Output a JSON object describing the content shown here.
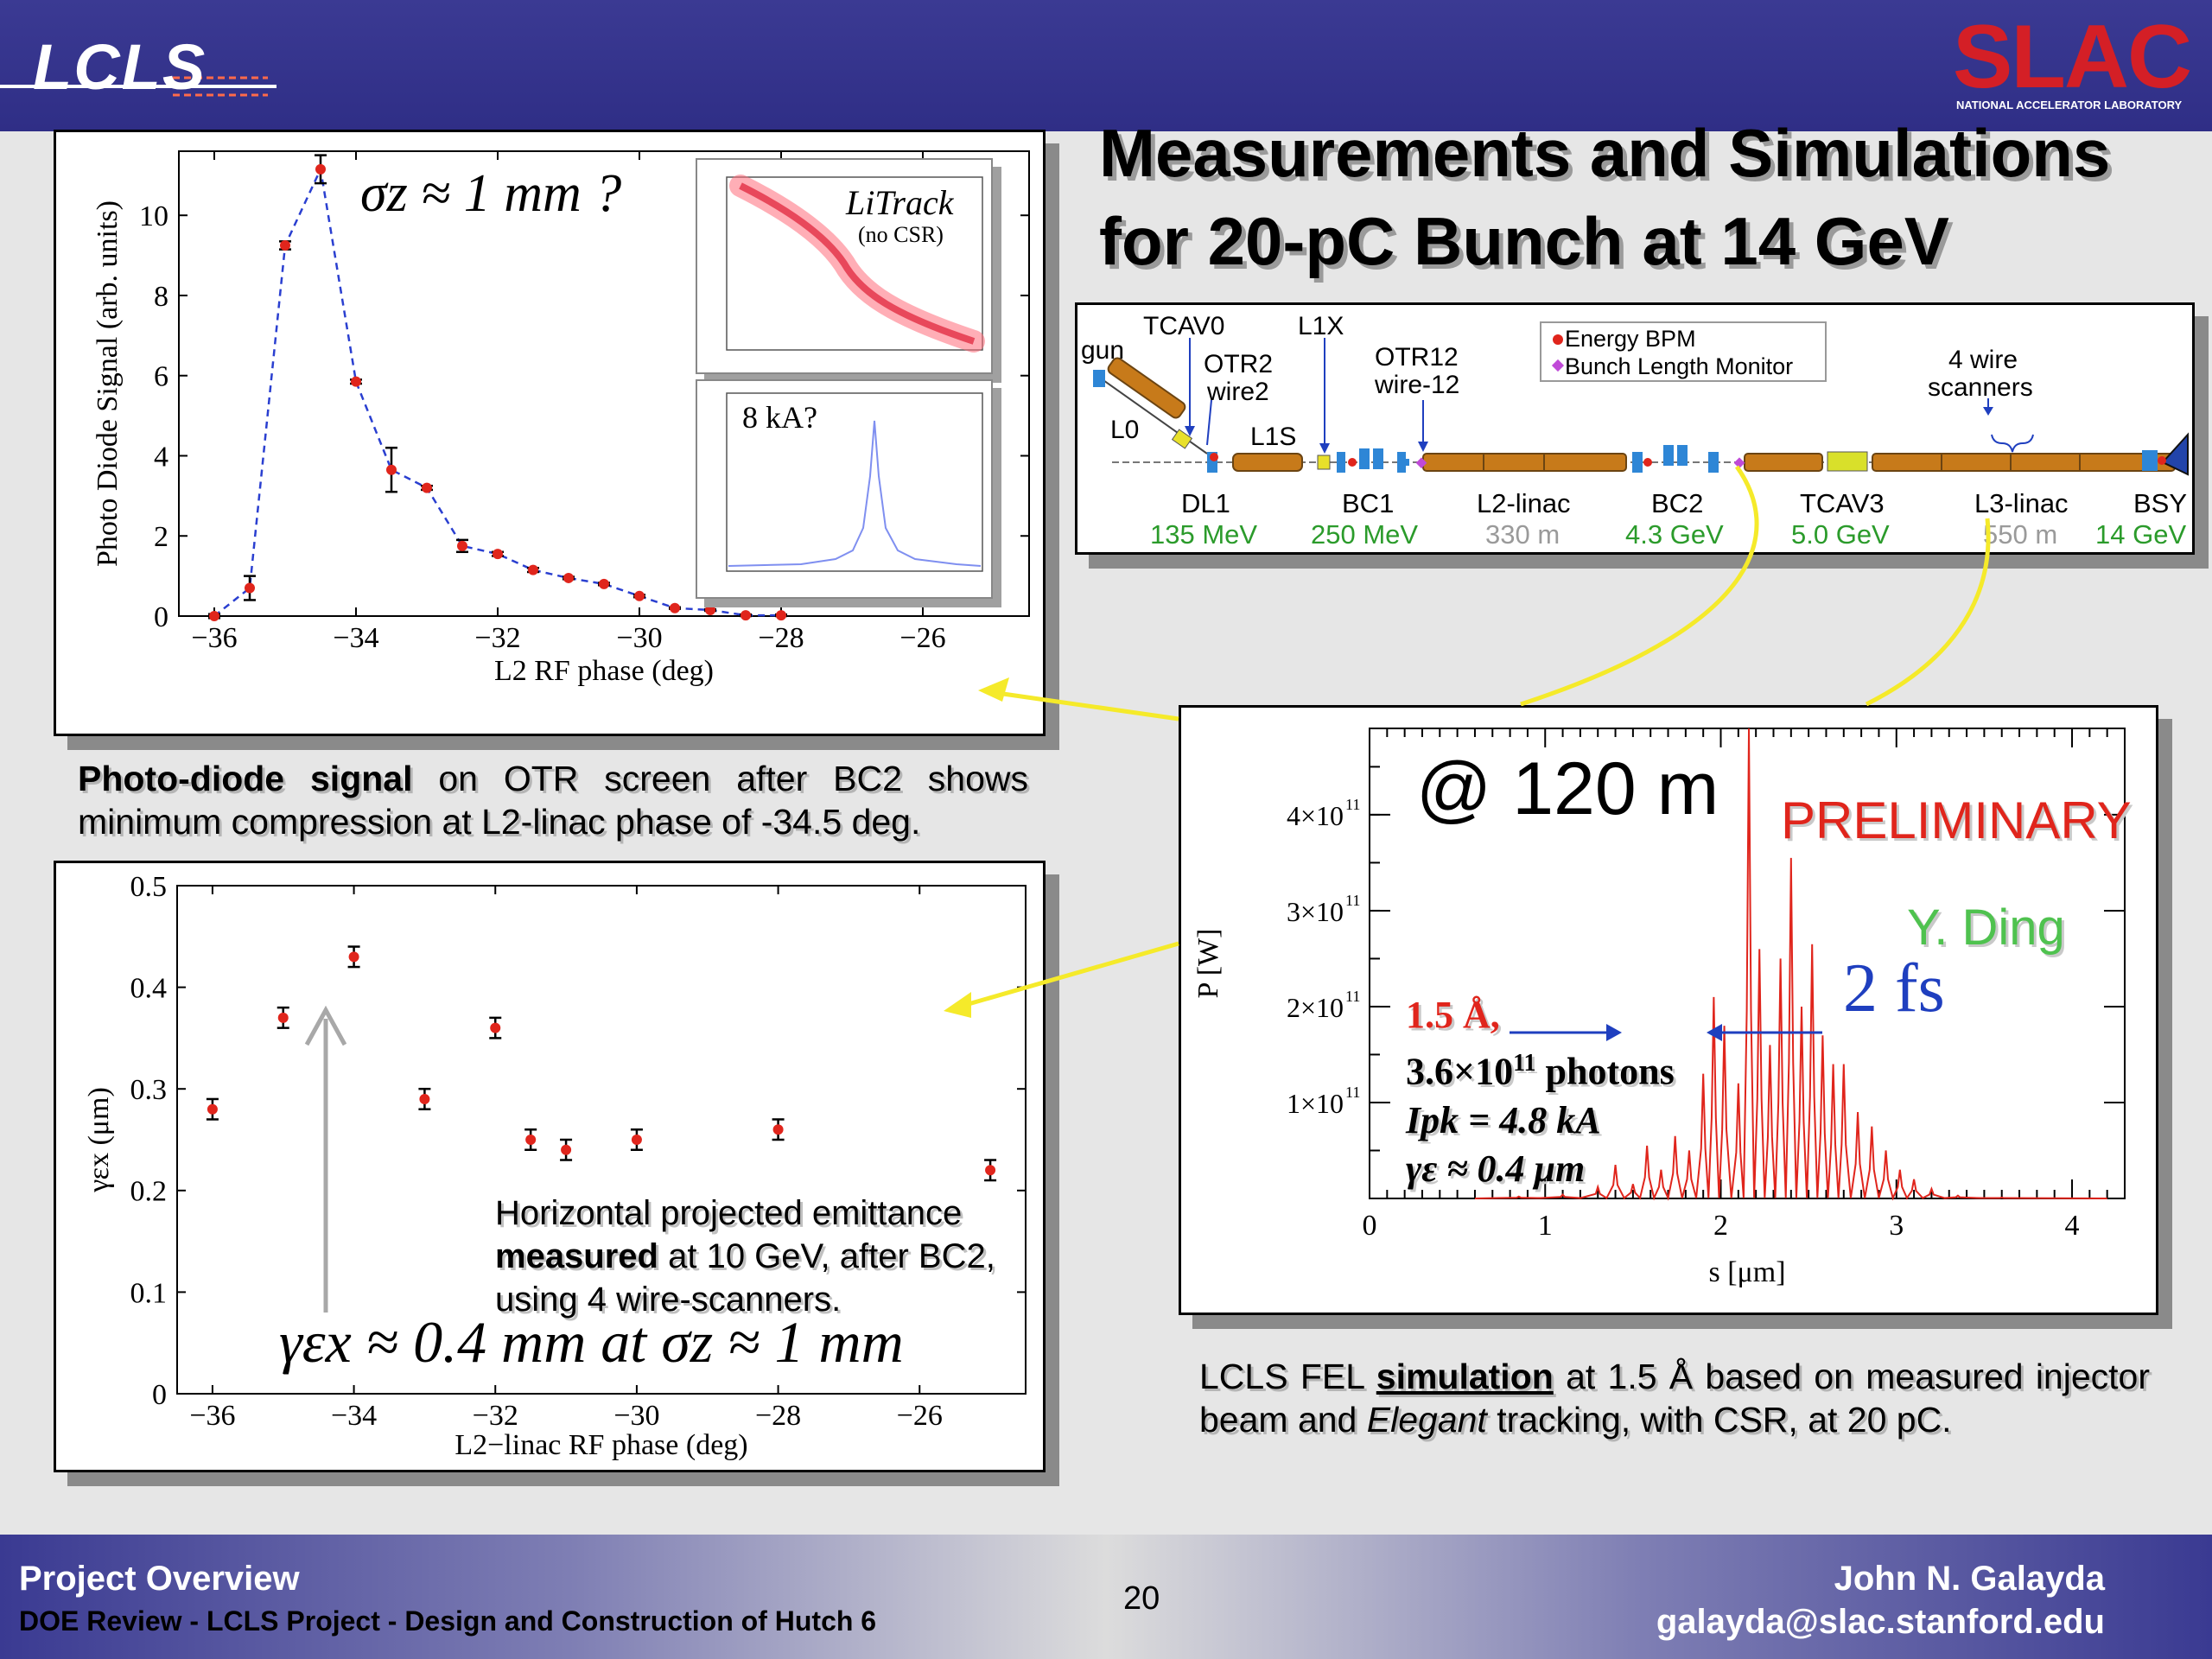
{
  "slide": {
    "title_line1": "Measurements and Simulations",
    "title_line2": "for 20-pC Bunch at 14 GeV",
    "page_number": "20",
    "footer_left_title": "Project Overview",
    "footer_left_subtitle": "DOE Review - LCLS Project - Design and Construction of Hutch 6",
    "footer_right_name": "John N. Galayda",
    "footer_right_email": "galayda@slac.stanford.edu",
    "logo_left": "LCLS",
    "logo_right": "SLAC",
    "logo_right_sub": "NATIONAL ACCELERATOR LABORATORY",
    "colors": {
      "header_bar": "#2f2e86",
      "accent_red": "#e0251c",
      "arrow_yellow": "#f5ea2a",
      "green_energy": "#2b9b2b"
    }
  },
  "captions": {
    "photodiode_bold": "Photo-diode signal",
    "photodiode_rest": " on OTR screen after BC2 shows minimum compression at L2-linac phase of -34.5 deg.",
    "emittance_line1": "Horizontal projected emittance",
    "emittance_bold": "measured",
    "emittance_line2_rest": " at 10 GeV, after BC2,",
    "emittance_line3": "using 4 wire-scanners.",
    "fel_pre": "LCLS FEL ",
    "fel_bold": "simulation",
    "fel_mid": " at 1.5 Å based on measured injector beam and ",
    "fel_italic": "Elegant",
    "fel_end": " tracking, with CSR, at 20 pC."
  },
  "beamline": {
    "top_labels": {
      "tcav0": "TCAV0",
      "l1x": "L1X",
      "otr2": "OTR2",
      "wire2": "wire2",
      "otr12": "OTR12",
      "wire12": "wire-12",
      "gun": "gun",
      "l0": "L0",
      "l1s": "L1S",
      "wire_scanners_1": "4 wire",
      "wire_scanners_2": "scanners"
    },
    "legend": [
      "Energy BPM",
      "Bunch Length Monitor"
    ],
    "sections": [
      {
        "name": "DL1",
        "value": "135 MeV",
        "value_color": "#2b9b2b"
      },
      {
        "name": "BC1",
        "value": "250 MeV",
        "value_color": "#2b9b2b"
      },
      {
        "name": "L2-linac",
        "value": "330 m",
        "value_color": "#9a9a9a"
      },
      {
        "name": "BC2",
        "value": "4.3 GeV",
        "value_color": "#2b9b2b"
      },
      {
        "name": "TCAV3",
        "value": "5.0 GeV",
        "value_color": "#2b9b2b"
      },
      {
        "name": "L3-linac",
        "value": "550 m",
        "value_color": "#9a9a9a"
      },
      {
        "name": "BSY",
        "value": "14 GeV",
        "value_color": "#2b9b2b"
      }
    ]
  },
  "chart_data": [
    {
      "id": "photodiode",
      "type": "line",
      "xlabel": "L2 RF phase (deg)",
      "ylabel": "Photo Diode Signal (arb. units)",
      "xlim": [
        -36.5,
        -24.5
      ],
      "ylim": [
        0,
        11.6
      ],
      "xticks": [
        -36,
        -34,
        -32,
        -30,
        -28,
        -26
      ],
      "xtick_labels": [
        "−36",
        "−34",
        "−32",
        "−30",
        "−28",
        "−26"
      ],
      "yticks": [
        0,
        2,
        4,
        6,
        8,
        10
      ],
      "ytick_labels": [
        "0",
        "2",
        "4",
        "6",
        "8",
        "10"
      ],
      "annotation": "σz ≈ 1 mm ?",
      "points": [
        {
          "x": -36.0,
          "y": 0.0,
          "err": 0.05
        },
        {
          "x": -35.5,
          "y": 0.7,
          "err": 0.3
        },
        {
          "x": -35.0,
          "y": 9.25,
          "err": 0.1
        },
        {
          "x": -34.5,
          "y": 11.15,
          "err": 0.35
        },
        {
          "x": -34.0,
          "y": 5.85,
          "err": 0.05
        },
        {
          "x": -33.5,
          "y": 3.65,
          "err": 0.55
        },
        {
          "x": -33.0,
          "y": 3.2,
          "err": 0.05
        },
        {
          "x": -32.5,
          "y": 1.75,
          "err": 0.15
        },
        {
          "x": -32.0,
          "y": 1.55,
          "err": 0.05
        },
        {
          "x": -31.5,
          "y": 1.15,
          "err": 0.05
        },
        {
          "x": -31.0,
          "y": 0.95,
          "err": 0.03
        },
        {
          "x": -30.5,
          "y": 0.8,
          "err": 0.03
        },
        {
          "x": -30.0,
          "y": 0.5,
          "err": 0.03
        },
        {
          "x": -29.5,
          "y": 0.2,
          "err": 0.02
        },
        {
          "x": -29.0,
          "y": 0.15,
          "err": 0.02
        },
        {
          "x": -28.5,
          "y": 0.02,
          "err": 0.02
        },
        {
          "x": -28.0,
          "y": 0.02,
          "err": 0.02
        }
      ]
    },
    {
      "id": "emittance",
      "type": "scatter",
      "xlabel": "L2−linac RF phase (deg)",
      "ylabel": "γεx (μm)",
      "xlim": [
        -36.5,
        -24.5
      ],
      "ylim": [
        0,
        0.5
      ],
      "xticks": [
        -36,
        -34,
        -32,
        -30,
        -28,
        -26
      ],
      "xtick_labels": [
        "−36",
        "−34",
        "−32",
        "−30",
        "−28",
        "−26"
      ],
      "yticks": [
        0,
        0.1,
        0.2,
        0.3,
        0.4,
        0.5
      ],
      "ytick_labels": [
        "0",
        "0.1",
        "0.2",
        "0.3",
        "0.4",
        "0.5"
      ],
      "annotation": "γεx ≈ 0.4 mm at σz ≈ 1 mm",
      "points": [
        {
          "x": -36.0,
          "y": 0.28,
          "err": 0.01
        },
        {
          "x": -35.0,
          "y": 0.37,
          "err": 0.01
        },
        {
          "x": -34.0,
          "y": 0.43,
          "err": 0.01
        },
        {
          "x": -33.0,
          "y": 0.29,
          "err": 0.01
        },
        {
          "x": -32.0,
          "y": 0.36,
          "err": 0.01
        },
        {
          "x": -31.5,
          "y": 0.25,
          "err": 0.01
        },
        {
          "x": -31.0,
          "y": 0.24,
          "err": 0.01
        },
        {
          "x": -30.0,
          "y": 0.25,
          "err": 0.01
        },
        {
          "x": -28.0,
          "y": 0.26,
          "err": 0.01
        },
        {
          "x": -25.0,
          "y": 0.22,
          "err": 0.01
        }
      ]
    },
    {
      "id": "fel_power",
      "type": "line",
      "xlabel": "s [μm]",
      "ylabel": "P [W]",
      "xlim": [
        0,
        4.3
      ],
      "ylim": [
        0,
        490000000000.0
      ],
      "xticks": [
        0,
        1,
        2,
        3,
        4
      ],
      "xtick_labels": [
        "0",
        "1",
        "2",
        "3",
        "4"
      ],
      "ytick_labels": [
        "1×10",
        "2×10",
        "3×10",
        "4×10"
      ],
      "ytick_exponent": "11",
      "yticks": [
        100000000000.0,
        200000000000.0,
        300000000000.0,
        400000000000.0
      ],
      "annotation_location": "@ 120 m",
      "annotation_preliminary": "PRELIMINARY",
      "annotation_author": "Y. Ding",
      "annotation_fs": "2 fs",
      "stats": {
        "wavelength": "1.5 Å,",
        "photons_prefix": "3.6",
        "photons_mid": "10",
        "photons_exp": "11",
        "photons_suffix": " photons",
        "current": "Ipk = 4.8 kA",
        "emittance": "γε ≈ 0.4 μm"
      },
      "peaks": [
        {
          "x": 0.85,
          "y": 2000000000.0
        },
        {
          "x": 1.1,
          "y": 4000000000.0
        },
        {
          "x": 1.3,
          "y": 12000000000.0
        },
        {
          "x": 1.4,
          "y": 35000000000.0
        },
        {
          "x": 1.5,
          "y": 15000000000.0
        },
        {
          "x": 1.58,
          "y": 55000000000.0
        },
        {
          "x": 1.66,
          "y": 30000000000.0
        },
        {
          "x": 1.74,
          "y": 65000000000.0
        },
        {
          "x": 1.82,
          "y": 50000000000.0
        },
        {
          "x": 1.9,
          "y": 130000000000.0
        },
        {
          "x": 1.96,
          "y": 210000000000.0
        },
        {
          "x": 2.02,
          "y": 180000000000.0
        },
        {
          "x": 2.1,
          "y": 120000000000.0
        },
        {
          "x": 2.16,
          "y": 490000000000.0
        },
        {
          "x": 2.22,
          "y": 260000000000.0
        },
        {
          "x": 2.28,
          "y": 160000000000.0
        },
        {
          "x": 2.34,
          "y": 250000000000.0
        },
        {
          "x": 2.4,
          "y": 355000000000.0
        },
        {
          "x": 2.46,
          "y": 200000000000.0
        },
        {
          "x": 2.52,
          "y": 265000000000.0
        },
        {
          "x": 2.58,
          "y": 170000000000.0
        },
        {
          "x": 2.64,
          "y": 140000000000.0
        },
        {
          "x": 2.7,
          "y": 140000000000.0
        },
        {
          "x": 2.78,
          "y": 90000000000.0
        },
        {
          "x": 2.86,
          "y": 75000000000.0
        },
        {
          "x": 2.94,
          "y": 50000000000.0
        },
        {
          "x": 3.02,
          "y": 30000000000.0
        },
        {
          "x": 3.1,
          "y": 20000000000.0
        },
        {
          "x": 3.2,
          "y": 10000000000.0
        },
        {
          "x": 3.35,
          "y": 3000000000.0
        },
        {
          "x": 3.6,
          "y": 1000000000.0
        }
      ]
    },
    {
      "id": "litrack_inset",
      "type": "scatter",
      "title": "LiTrack",
      "subtitle": "(no CSR)"
    },
    {
      "id": "current_inset",
      "type": "line",
      "annotation": "8 kA?"
    }
  ]
}
